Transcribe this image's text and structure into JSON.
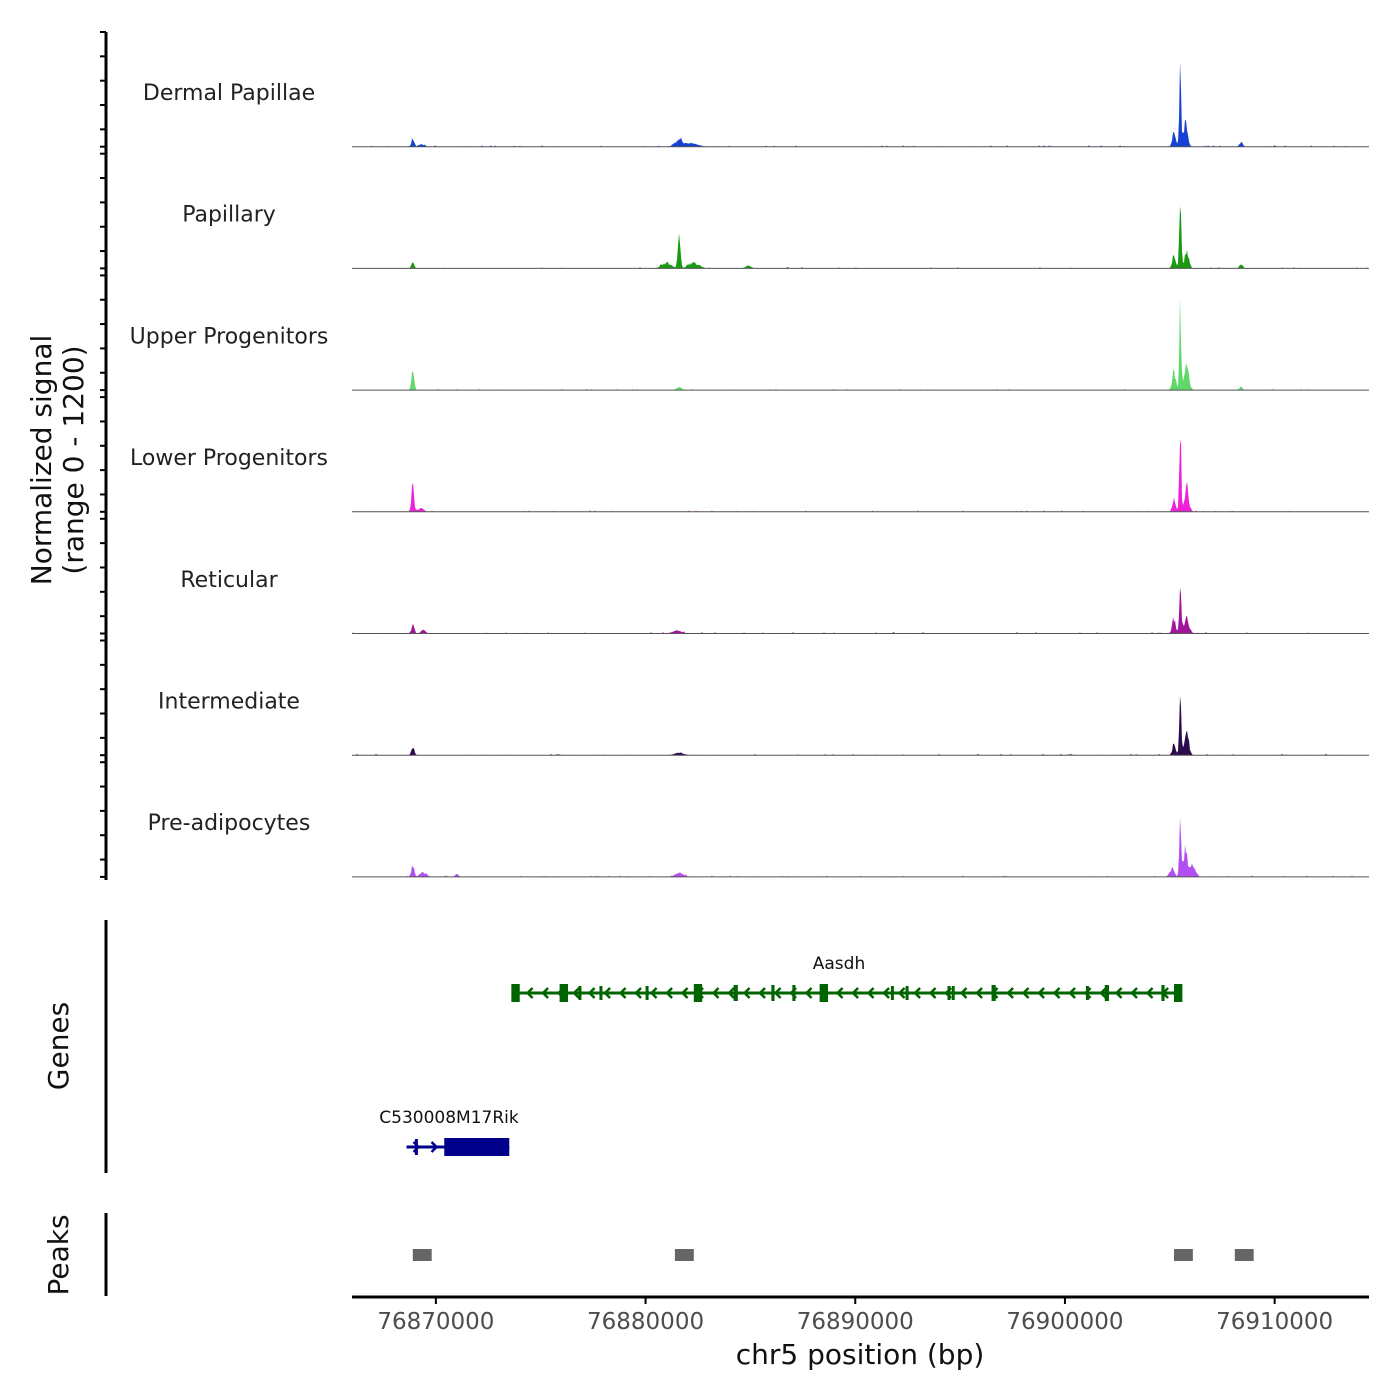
{
  "chart_data": {
    "type": "area",
    "title": "",
    "chromosome": "chr5",
    "xlabel": "chr5 position (bp)",
    "ylabel": "Normalized signal",
    "ylabel_range": "(range 0 - 1200)",
    "genes_label": "Genes",
    "peaks_label": "Peaks",
    "xlim": [
      76866000,
      76914500
    ],
    "ylim": [
      0,
      1200
    ],
    "xticks": [
      76870000,
      76880000,
      76890000,
      76900000,
      76910000
    ],
    "xtick_labels": [
      "76870000",
      "76880000",
      "76890000",
      "76900000",
      "76910000"
    ],
    "tracks": [
      {
        "name": "Dermal Papillae",
        "color": "#1741d3",
        "peaks": [
          [
            76868900,
            130,
            60
          ],
          [
            76869300,
            25,
            120
          ],
          [
            76881600,
            90,
            180
          ],
          [
            76882200,
            35,
            280
          ],
          [
            76905200,
            260,
            70
          ],
          [
            76905500,
            1020,
            45
          ],
          [
            76905750,
            320,
            90
          ],
          [
            76908400,
            60,
            70
          ]
        ]
      },
      {
        "name": "Papillary",
        "color": "#1a9a12",
        "peaks": [
          [
            76868900,
            80,
            60
          ],
          [
            76881000,
            70,
            200
          ],
          [
            76881600,
            420,
            60
          ],
          [
            76882300,
            80,
            220
          ],
          [
            76884900,
            30,
            120
          ],
          [
            76905200,
            200,
            80
          ],
          [
            76905500,
            980,
            45
          ],
          [
            76905800,
            250,
            100
          ],
          [
            76908400,
            60,
            70
          ]
        ]
      },
      {
        "name": "Upper Progenitors",
        "color": "#5fd96a",
        "peaks": [
          [
            76868900,
            260,
            60
          ],
          [
            76881600,
            30,
            120
          ],
          [
            76905200,
            250,
            80
          ],
          [
            76905500,
            1080,
            45
          ],
          [
            76905800,
            320,
            110
          ],
          [
            76908400,
            40,
            60
          ]
        ]
      },
      {
        "name": "Lower Progenitors",
        "color": "#ee20d8",
        "peaks": [
          [
            76868900,
            400,
            60
          ],
          [
            76869300,
            40,
            120
          ],
          [
            76905200,
            200,
            70
          ],
          [
            76905500,
            1130,
            45
          ],
          [
            76905800,
            350,
            100
          ]
        ]
      },
      {
        "name": "Reticular",
        "color": "#a0169b",
        "peaks": [
          [
            76868900,
            150,
            60
          ],
          [
            76869400,
            40,
            100
          ],
          [
            76881500,
            30,
            200
          ],
          [
            76905200,
            200,
            80
          ],
          [
            76905500,
            880,
            45
          ],
          [
            76905800,
            240,
            110
          ]
        ]
      },
      {
        "name": "Intermediate",
        "color": "#2c0b4e",
        "peaks": [
          [
            76868900,
            130,
            60
          ],
          [
            76881600,
            25,
            200
          ],
          [
            76905200,
            180,
            70
          ],
          [
            76905500,
            880,
            45
          ],
          [
            76905800,
            300,
            100
          ]
        ]
      },
      {
        "name": "Pre-adipocytes",
        "color": "#b24ff1",
        "peaks": [
          [
            76868900,
            170,
            60
          ],
          [
            76869400,
            60,
            140
          ],
          [
            76871000,
            30,
            80
          ],
          [
            76881600,
            40,
            200
          ],
          [
            76905100,
            120,
            100
          ],
          [
            76905500,
            980,
            45
          ],
          [
            76905750,
            420,
            90
          ],
          [
            76906100,
            180,
            120
          ]
        ]
      }
    ],
    "genes": [
      {
        "name": "Aasdh",
        "strand": "-",
        "color": "#006400",
        "row": 1,
        "start": 76873800,
        "end": 76905500,
        "exons": [
          [
            76873600,
            76874000,
            "tall"
          ],
          [
            76875900,
            76876300,
            "tall"
          ],
          [
            76882300,
            76882700,
            "tall"
          ],
          [
            76888300,
            76888700,
            "tall"
          ],
          [
            76905200,
            76905600,
            "tall"
          ],
          [
            76884200,
            76884400,
            "mid"
          ],
          [
            76896500,
            76896700,
            "mid"
          ],
          [
            76886000,
            76886150,
            "mid"
          ],
          [
            76887000,
            76887150,
            "mid"
          ],
          [
            76901900,
            76902100,
            "mid"
          ],
          [
            76904600,
            76904750,
            "mid"
          ],
          [
            76876800,
            76876900,
            "thin"
          ],
          [
            76877800,
            76877900,
            "thin"
          ],
          [
            76880000,
            76880100,
            "thin"
          ],
          [
            76891700,
            76891800,
            "thin"
          ],
          [
            76892400,
            76892500,
            "thin"
          ],
          [
            76894400,
            76894460,
            "thin"
          ],
          [
            76894600,
            76894660,
            "thin"
          ],
          [
            76901000,
            76901100,
            "thin"
          ]
        ]
      },
      {
        "name": "C530008M17Rik",
        "strand": "+",
        "color": "#00008b",
        "row": 2,
        "start": 76868600,
        "end": 76873500,
        "exons": [
          [
            76869000,
            76869100,
            "mid"
          ],
          [
            76870400,
            76873500,
            "tall"
          ]
        ]
      }
    ],
    "peak_regions": [
      [
        76868900,
        76869800
      ],
      [
        76881400,
        76882300
      ],
      [
        76905200,
        76906100
      ],
      [
        76908100,
        76909000
      ]
    ]
  }
}
